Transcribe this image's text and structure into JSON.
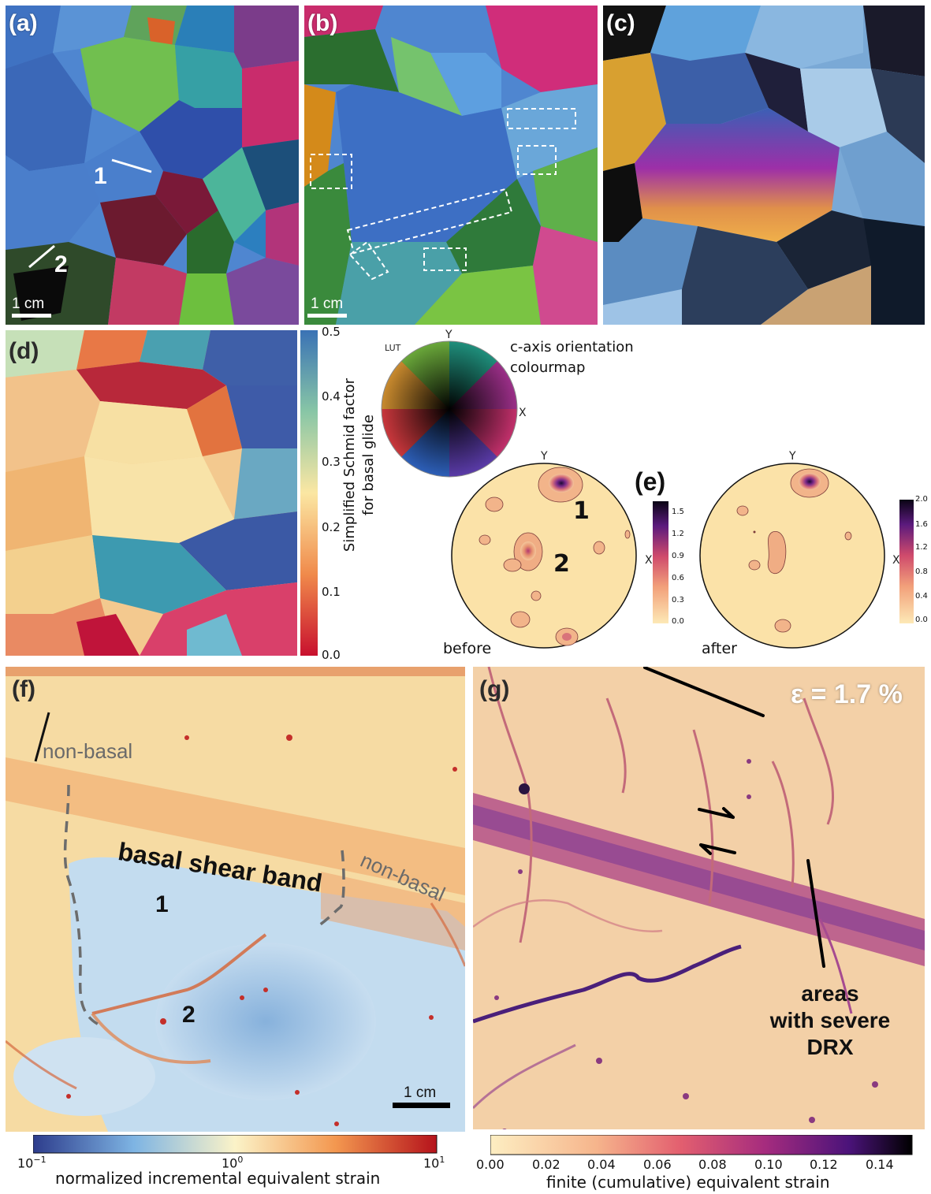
{
  "panels": {
    "a": {
      "label": "(a)",
      "scale": "1 cm",
      "markers": [
        "1",
        "2"
      ]
    },
    "b": {
      "label": "(b)",
      "scale": "1 cm"
    },
    "c": {
      "label": "(c)"
    },
    "d": {
      "label": "(d)",
      "colorbar_title_line1": "Simplified Schmid factor",
      "colorbar_title_line2": "for basal glide",
      "ticks": [
        "0.5",
        "0.4",
        "0.3",
        "0.2",
        "0.1",
        "0.0"
      ]
    },
    "lut": {
      "tag": "LUT",
      "y": "Y",
      "x": "X",
      "caption_line1": "c-axis orientation",
      "caption_line2": "colourmap"
    },
    "e": {
      "label": "(e)",
      "before": {
        "caption": "before",
        "y": "Y",
        "x": "X",
        "markers": [
          "1",
          "2"
        ],
        "ticks": [
          "1.5",
          "1.2",
          "0.9",
          "0.6",
          "0.3",
          "0.0"
        ]
      },
      "after": {
        "caption": "after",
        "y": "Y",
        "x": "X",
        "ticks": [
          "2.0",
          "1.6",
          "1.2",
          "0.8",
          "0.4",
          "0.0"
        ]
      }
    },
    "f": {
      "label": "(f)",
      "non_basal_1": "non-basal",
      "shear_band": "basal shear band",
      "non_basal_2": "non-basal",
      "markers": [
        "1",
        "2"
      ],
      "scale": "1 cm",
      "colorbar_label": "normalized incremental equivalent strain",
      "ticks": [
        "10",
        "10",
        "10"
      ],
      "tick_exponents": [
        "−1",
        "0",
        "1"
      ]
    },
    "g": {
      "label": "(g)",
      "strain": "ε = 1.7 %",
      "drx_line1": "areas",
      "drx_line2": "with severe",
      "drx_line3": "DRX",
      "colorbar_label": "finite (cumulative) equivalent strain",
      "ticks": [
        "0.00",
        "0.02",
        "0.04",
        "0.06",
        "0.08",
        "0.10",
        "0.12",
        "0.14"
      ]
    }
  },
  "colors": {
    "grain_blue": "#3d6fc4",
    "strain_high": "#3b0f70",
    "strain_low": "#fce8b0"
  }
}
